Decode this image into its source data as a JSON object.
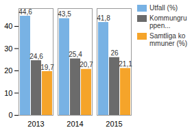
{
  "chart_data": {
    "type": "bar",
    "categories": [
      "2013",
      "2014",
      "2015"
    ],
    "series": [
      {
        "name": "Utfall (%)",
        "color": "#78b2e4",
        "values": [
          44.6,
          43.5,
          41.8
        ],
        "value_labels": [
          "44,6",
          "43,5",
          "41,8"
        ]
      },
      {
        "name": "Kommungruppen...",
        "color": "#6b6b6b",
        "values": [
          24.6,
          25.4,
          26
        ],
        "value_labels": [
          "24,6",
          "25,4",
          "26"
        ]
      },
      {
        "name": "Samtliga kommuner (%)",
        "color": "#f5a42a",
        "values": [
          19.7,
          20.7,
          21.1
        ],
        "value_labels": [
          "19,7",
          "20,7",
          "21,1"
        ]
      }
    ],
    "ylim": [
      0,
      48
    ],
    "yticks": [
      0,
      10,
      20,
      30,
      40
    ],
    "grid": false,
    "legend": "right",
    "data_labels": true
  }
}
